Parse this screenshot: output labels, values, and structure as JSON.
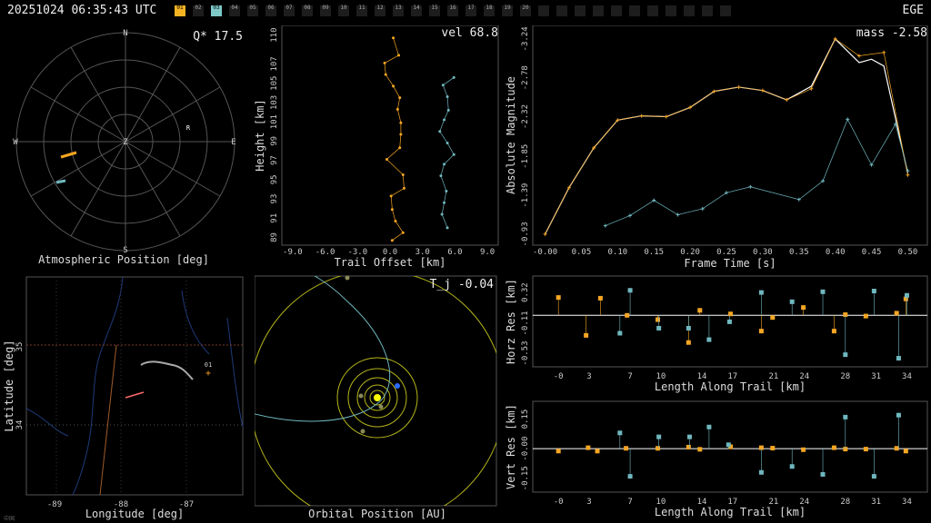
{
  "header": {
    "timestamp": "20251024 06:35:43 UTC",
    "station": "EGE",
    "tabs": [
      "01",
      "02",
      "03",
      "04",
      "05",
      "06",
      "07",
      "08",
      "09",
      "10",
      "11",
      "12",
      "13",
      "14",
      "15",
      "16",
      "17",
      "18",
      "19",
      "20",
      "",
      "",
      "",
      "",
      "",
      "",
      "",
      "",
      "",
      "",
      ""
    ],
    "active_tabs": [
      0,
      2
    ],
    "tab_colors": {
      "0": "#f5b324",
      "2": "#7fc8c8"
    }
  },
  "colors": {
    "orange": "#f5a623",
    "cyan": "#6fb7bf",
    "yellow": "#ffff00",
    "white": "#ffffff",
    "grid": "#555555",
    "blue": "#2a6aff"
  },
  "panels": {
    "sky": {
      "readout": "Q* 17.5",
      "xlabel": "Atmospheric Position [deg]",
      "compass": [
        "N",
        "E",
        "S",
        "W",
        "Z"
      ],
      "marker": "R"
    },
    "height": {
      "readout": "vel 68.8",
      "xlabel": "Trail Offset [km]",
      "ylabel": "Height [km]"
    },
    "mag": {
      "readout": "mass -2.58",
      "xlabel": "Frame Time [s]",
      "ylabel": "Absolute Magnitude"
    },
    "map": {
      "xlabel": "Longitude [deg]",
      "ylabel": "Latitude [deg]",
      "marker": "01"
    },
    "orbit": {
      "readout": "T_j -0.04",
      "xlabel": "Orbital Position [AU]"
    },
    "horz": {
      "xlabel": "Length Along Trail [km]",
      "ylabel": "Horz Res [km]"
    },
    "vert": {
      "xlabel": "Length Along Trail [km]",
      "ylabel": "Vert Res [km]"
    },
    "corner": "中国"
  },
  "chart_data": [
    {
      "id": "height",
      "type": "line",
      "x_ticks": [
        "-9.0",
        "-6.0",
        "-3.0",
        "0.0",
        "3.0",
        "6.0",
        "9.0"
      ],
      "y_ticks": [
        "89",
        "91",
        "93",
        "95",
        "97",
        "99",
        "101",
        "103",
        "105",
        "107",
        "110"
      ],
      "xlim": [
        -10,
        10
      ],
      "ylim": [
        88.2,
        111
      ],
      "series": [
        {
          "color": "orange",
          "points": [
            [
              0.2,
              88.7
            ],
            [
              1.2,
              89.5
            ],
            [
              0.5,
              90.7
            ],
            [
              0.2,
              91.9
            ],
            [
              0.1,
              93.3
            ],
            [
              1.3,
              94.1
            ],
            [
              1.2,
              95.5
            ],
            [
              -0.3,
              97.1
            ],
            [
              0.9,
              98.3
            ],
            [
              1.0,
              99.7
            ],
            [
              1.0,
              100.9
            ],
            [
              0.7,
              102.3
            ],
            [
              0.9,
              103.5
            ],
            [
              0.3,
              104.7
            ],
            [
              -0.4,
              105.9
            ],
            [
              -0.5,
              107.1
            ],
            [
              0.8,
              107.9
            ],
            [
              0.3,
              109.7
            ]
          ]
        },
        {
          "color": "cyan",
          "points": [
            [
              5.3,
              90.0
            ],
            [
              4.8,
              91.4
            ],
            [
              5.0,
              92.6
            ],
            [
              5.2,
              93.8
            ],
            [
              4.7,
              95.4
            ],
            [
              5.0,
              96.6
            ],
            [
              5.9,
              97.6
            ],
            [
              5.3,
              98.8
            ],
            [
              4.6,
              100.0
            ],
            [
              5.0,
              101.2
            ],
            [
              5.4,
              102.2
            ],
            [
              5.3,
              103.6
            ],
            [
              4.9,
              104.8
            ],
            [
              5.9,
              105.6
            ]
          ]
        }
      ]
    },
    {
      "id": "mag",
      "type": "line",
      "x_ticks": [
        "-0.00",
        "0.05",
        "0.10",
        "0.15",
        "0.20",
        "0.25",
        "0.30",
        "0.35",
        "0.40",
        "0.45",
        "0.50"
      ],
      "y_ticks": [
        "-0.93",
        "-1.39",
        "-1.85",
        "-2.32",
        "-2.78",
        "-3.24"
      ],
      "xlim": [
        -0.017,
        0.527
      ],
      "ylim": [
        -0.8,
        -3.4
      ],
      "fit": {
        "color": "white",
        "points": [
          [
            0.0,
            -0.93
          ],
          [
            0.033,
            -1.48
          ],
          [
            0.067,
            -1.95
          ],
          [
            0.1,
            -2.28
          ],
          [
            0.133,
            -2.33
          ],
          [
            0.167,
            -2.32
          ],
          [
            0.2,
            -2.43
          ],
          [
            0.233,
            -2.62
          ],
          [
            0.267,
            -2.67
          ],
          [
            0.3,
            -2.63
          ],
          [
            0.333,
            -2.52
          ],
          [
            0.367,
            -2.68
          ],
          [
            0.4,
            -3.24
          ],
          [
            0.433,
            -2.96
          ],
          [
            0.45,
            -3.0
          ],
          [
            0.467,
            -2.92
          ],
          [
            0.5,
            -1.65
          ]
        ]
      },
      "series": [
        {
          "color": "orange",
          "points": [
            [
              0.0,
              -0.93
            ],
            [
              0.033,
              -1.48
            ],
            [
              0.067,
              -1.95
            ],
            [
              0.1,
              -2.28
            ],
            [
              0.133,
              -2.33
            ],
            [
              0.167,
              -2.32
            ],
            [
              0.2,
              -2.43
            ],
            [
              0.233,
              -2.62
            ],
            [
              0.267,
              -2.67
            ],
            [
              0.3,
              -2.63
            ],
            [
              0.333,
              -2.52
            ],
            [
              0.367,
              -2.65
            ],
            [
              0.4,
              -3.24
            ],
            [
              0.433,
              -3.04
            ],
            [
              0.467,
              -3.08
            ],
            [
              0.5,
              -1.63
            ]
          ]
        },
        {
          "color": "cyan",
          "points": [
            [
              0.083,
              -1.03
            ],
            [
              0.117,
              -1.15
            ],
            [
              0.15,
              -1.33
            ],
            [
              0.183,
              -1.16
            ],
            [
              0.217,
              -1.23
            ],
            [
              0.25,
              -1.42
            ],
            [
              0.283,
              -1.49
            ],
            [
              0.35,
              -1.34
            ],
            [
              0.383,
              -1.56
            ],
            [
              0.417,
              -2.29
            ],
            [
              0.45,
              -1.75
            ],
            [
              0.483,
              -2.23
            ],
            [
              0.5,
              -1.68
            ]
          ]
        }
      ]
    },
    {
      "id": "horz",
      "type": "scatter",
      "x_ticks": [
        "-0",
        "3",
        "7",
        "10",
        "14",
        "17",
        "21",
        "24",
        "28",
        "31",
        "34"
      ],
      "y_ticks": [
        "0.32",
        "-0.11",
        "-0.53"
      ],
      "xlim": [
        -2.5,
        36
      ],
      "ylim": [
        -0.72,
        0.55
      ],
      "series": [
        {
          "color": "orange",
          "points": [
            [
              0,
              0.25
            ],
            [
              2.7,
              -0.28
            ],
            [
              4.1,
              0.24
            ],
            [
              6.7,
              0.0
            ],
            [
              9.7,
              -0.06
            ],
            [
              12.7,
              -0.38
            ],
            [
              13.8,
              0.07
            ],
            [
              16.8,
              0.02
            ],
            [
              19.8,
              -0.22
            ],
            [
              20.9,
              -0.03
            ],
            [
              23.9,
              0.11
            ],
            [
              26.9,
              -0.22
            ],
            [
              28.0,
              0.01
            ],
            [
              30.0,
              -0.01
            ],
            [
              33.0,
              0.03
            ],
            [
              33.9,
              0.23
            ]
          ]
        },
        {
          "color": "cyan",
          "points": [
            [
              6.0,
              -0.25
            ],
            [
              7.0,
              0.35
            ],
            [
              9.8,
              -0.18
            ],
            [
              12.7,
              -0.18
            ],
            [
              14.7,
              -0.34
            ],
            [
              16.7,
              -0.09
            ],
            [
              19.8,
              0.32
            ],
            [
              22.8,
              0.19
            ],
            [
              25.8,
              0.33
            ],
            [
              28.0,
              -0.55
            ],
            [
              30.8,
              0.34
            ],
            [
              33.2,
              -0.6
            ],
            [
              34.0,
              0.28
            ]
          ]
        }
      ]
    },
    {
      "id": "vert",
      "type": "scatter",
      "x_ticks": [
        "-0",
        "3",
        "7",
        "10",
        "14",
        "17",
        "21",
        "24",
        "28",
        "31",
        "34"
      ],
      "y_ticks": [
        "0.15",
        "-0.00",
        "-0.15"
      ],
      "xlim": [
        -2.5,
        36
      ],
      "ylim": [
        -0.22,
        0.24
      ],
      "series": [
        {
          "color": "orange",
          "points": [
            [
              0,
              -0.012
            ],
            [
              2.9,
              0.005
            ],
            [
              3.8,
              -0.012
            ],
            [
              6.6,
              0.002
            ],
            [
              9.7,
              0.002
            ],
            [
              12.7,
              0.008
            ],
            [
              13.8,
              -0.003
            ],
            [
              16.8,
              0.01
            ],
            [
              19.8,
              0.005
            ],
            [
              20.9,
              0.003
            ],
            [
              23.9,
              -0.005
            ],
            [
              26.9,
              0.005
            ],
            [
              28.0,
              -0.002
            ],
            [
              30.0,
              -0.002
            ],
            [
              33.0,
              0.002
            ],
            [
              33.9,
              -0.012
            ]
          ]
        },
        {
          "color": "cyan",
          "points": [
            [
              6.0,
              0.08
            ],
            [
              7.0,
              -0.14
            ],
            [
              9.8,
              0.06
            ],
            [
              12.8,
              0.06
            ],
            [
              14.7,
              0.11
            ],
            [
              16.6,
              0.02
            ],
            [
              19.8,
              -0.12
            ],
            [
              22.8,
              -0.09
            ],
            [
              25.8,
              -0.13
            ],
            [
              28.0,
              0.16
            ],
            [
              30.8,
              -0.14
            ],
            [
              33.2,
              0.17
            ]
          ]
        }
      ]
    }
  ]
}
